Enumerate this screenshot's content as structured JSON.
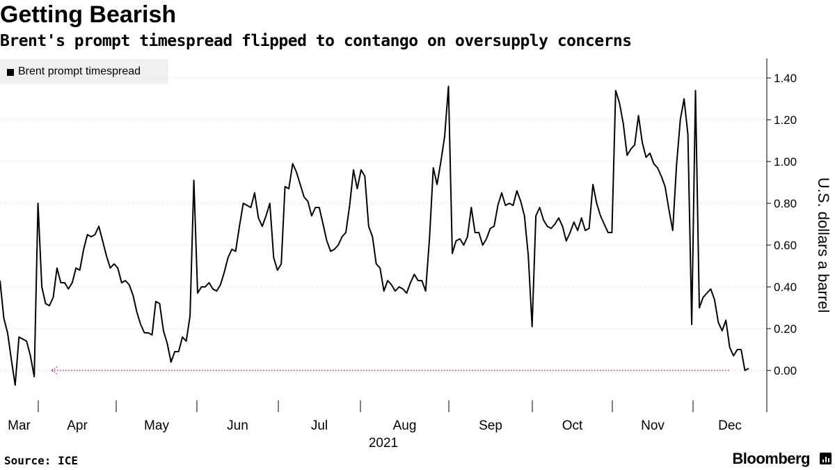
{
  "title": "Getting Bearish",
  "subtitle": "Brent's prompt timespread flipped to contango on oversupply concerns",
  "source": "Source: ICE",
  "brand": "Bloomberg",
  "chart_data": {
    "type": "line",
    "series": [
      {
        "name": "Brent prompt timespread",
        "color": "#000000",
        "values": [
          0.43,
          0.25,
          0.18,
          0.05,
          -0.07,
          0.16,
          0.15,
          0.14,
          0.07,
          -0.03,
          0.8,
          0.4,
          0.32,
          0.31,
          0.35,
          0.49,
          0.42,
          0.42,
          0.39,
          0.42,
          0.49,
          0.48,
          0.58,
          0.65,
          0.64,
          0.65,
          0.69,
          0.62,
          0.55,
          0.49,
          0.51,
          0.49,
          0.42,
          0.43,
          0.41,
          0.36,
          0.28,
          0.22,
          0.18,
          0.18,
          0.17,
          0.33,
          0.32,
          0.19,
          0.13,
          0.04,
          0.09,
          0.09,
          0.16,
          0.14,
          0.26,
          0.91,
          0.37,
          0.4,
          0.4,
          0.42,
          0.39,
          0.38,
          0.41,
          0.47,
          0.54,
          0.58,
          0.57,
          0.69,
          0.8,
          0.79,
          0.78,
          0.85,
          0.73,
          0.69,
          0.74,
          0.8,
          0.54,
          0.48,
          0.51,
          0.88,
          0.87,
          0.99,
          0.95,
          0.89,
          0.83,
          0.81,
          0.74,
          0.78,
          0.78,
          0.7,
          0.62,
          0.57,
          0.58,
          0.6,
          0.64,
          0.66,
          0.79,
          0.96,
          0.87,
          0.96,
          0.93,
          0.69,
          0.64,
          0.51,
          0.49,
          0.38,
          0.43,
          0.41,
          0.38,
          0.4,
          0.39,
          0.37,
          0.42,
          0.46,
          0.43,
          0.43,
          0.38,
          0.63,
          0.97,
          0.89,
          1.0,
          1.12,
          1.36,
          0.56,
          0.62,
          0.63,
          0.6,
          0.64,
          0.78,
          0.66,
          0.66,
          0.6,
          0.63,
          0.68,
          0.69,
          0.79,
          0.85,
          0.79,
          0.8,
          0.79,
          0.86,
          0.81,
          0.74,
          0.55,
          0.21,
          0.74,
          0.78,
          0.72,
          0.69,
          0.68,
          0.7,
          0.73,
          0.69,
          0.62,
          0.66,
          0.71,
          0.67,
          0.73,
          0.67,
          0.68,
          0.89,
          0.8,
          0.74,
          0.7,
          0.66,
          0.66,
          1.34,
          1.28,
          1.18,
          1.03,
          1.06,
          1.08,
          1.22,
          1.09,
          1.02,
          1.04,
          0.99,
          0.97,
          0.93,
          0.88,
          0.77,
          0.67,
          0.98,
          1.2,
          1.3,
          1.13,
          0.22,
          1.34,
          0.3,
          0.35,
          0.37,
          0.39,
          0.34,
          0.23,
          0.19,
          0.24,
          0.11,
          0.07,
          0.1,
          0.1,
          0.0,
          0.01
        ]
      }
    ],
    "x_tick_labels": [
      "Mar",
      "Apr",
      "May",
      "Jun",
      "Jul",
      "Aug",
      "Sep",
      "Oct",
      "Nov",
      "Dec"
    ],
    "x_year_label": "2021",
    "y_ticks": [
      0.0,
      0.2,
      0.4,
      0.6,
      0.8,
      1.0,
      1.2,
      1.4
    ],
    "y_tick_labels": [
      "0.00",
      "0.20",
      "0.40",
      "0.60",
      "0.80",
      "1.00",
      "1.20",
      "1.40"
    ],
    "ylabel": "U.S. dollars a barrel",
    "ylim": [
      -0.2,
      1.5
    ],
    "y_axis_side": "right",
    "grid": "horizontal dotted",
    "legend_position": "top-left",
    "zero_marker_color": "#e0306a"
  }
}
